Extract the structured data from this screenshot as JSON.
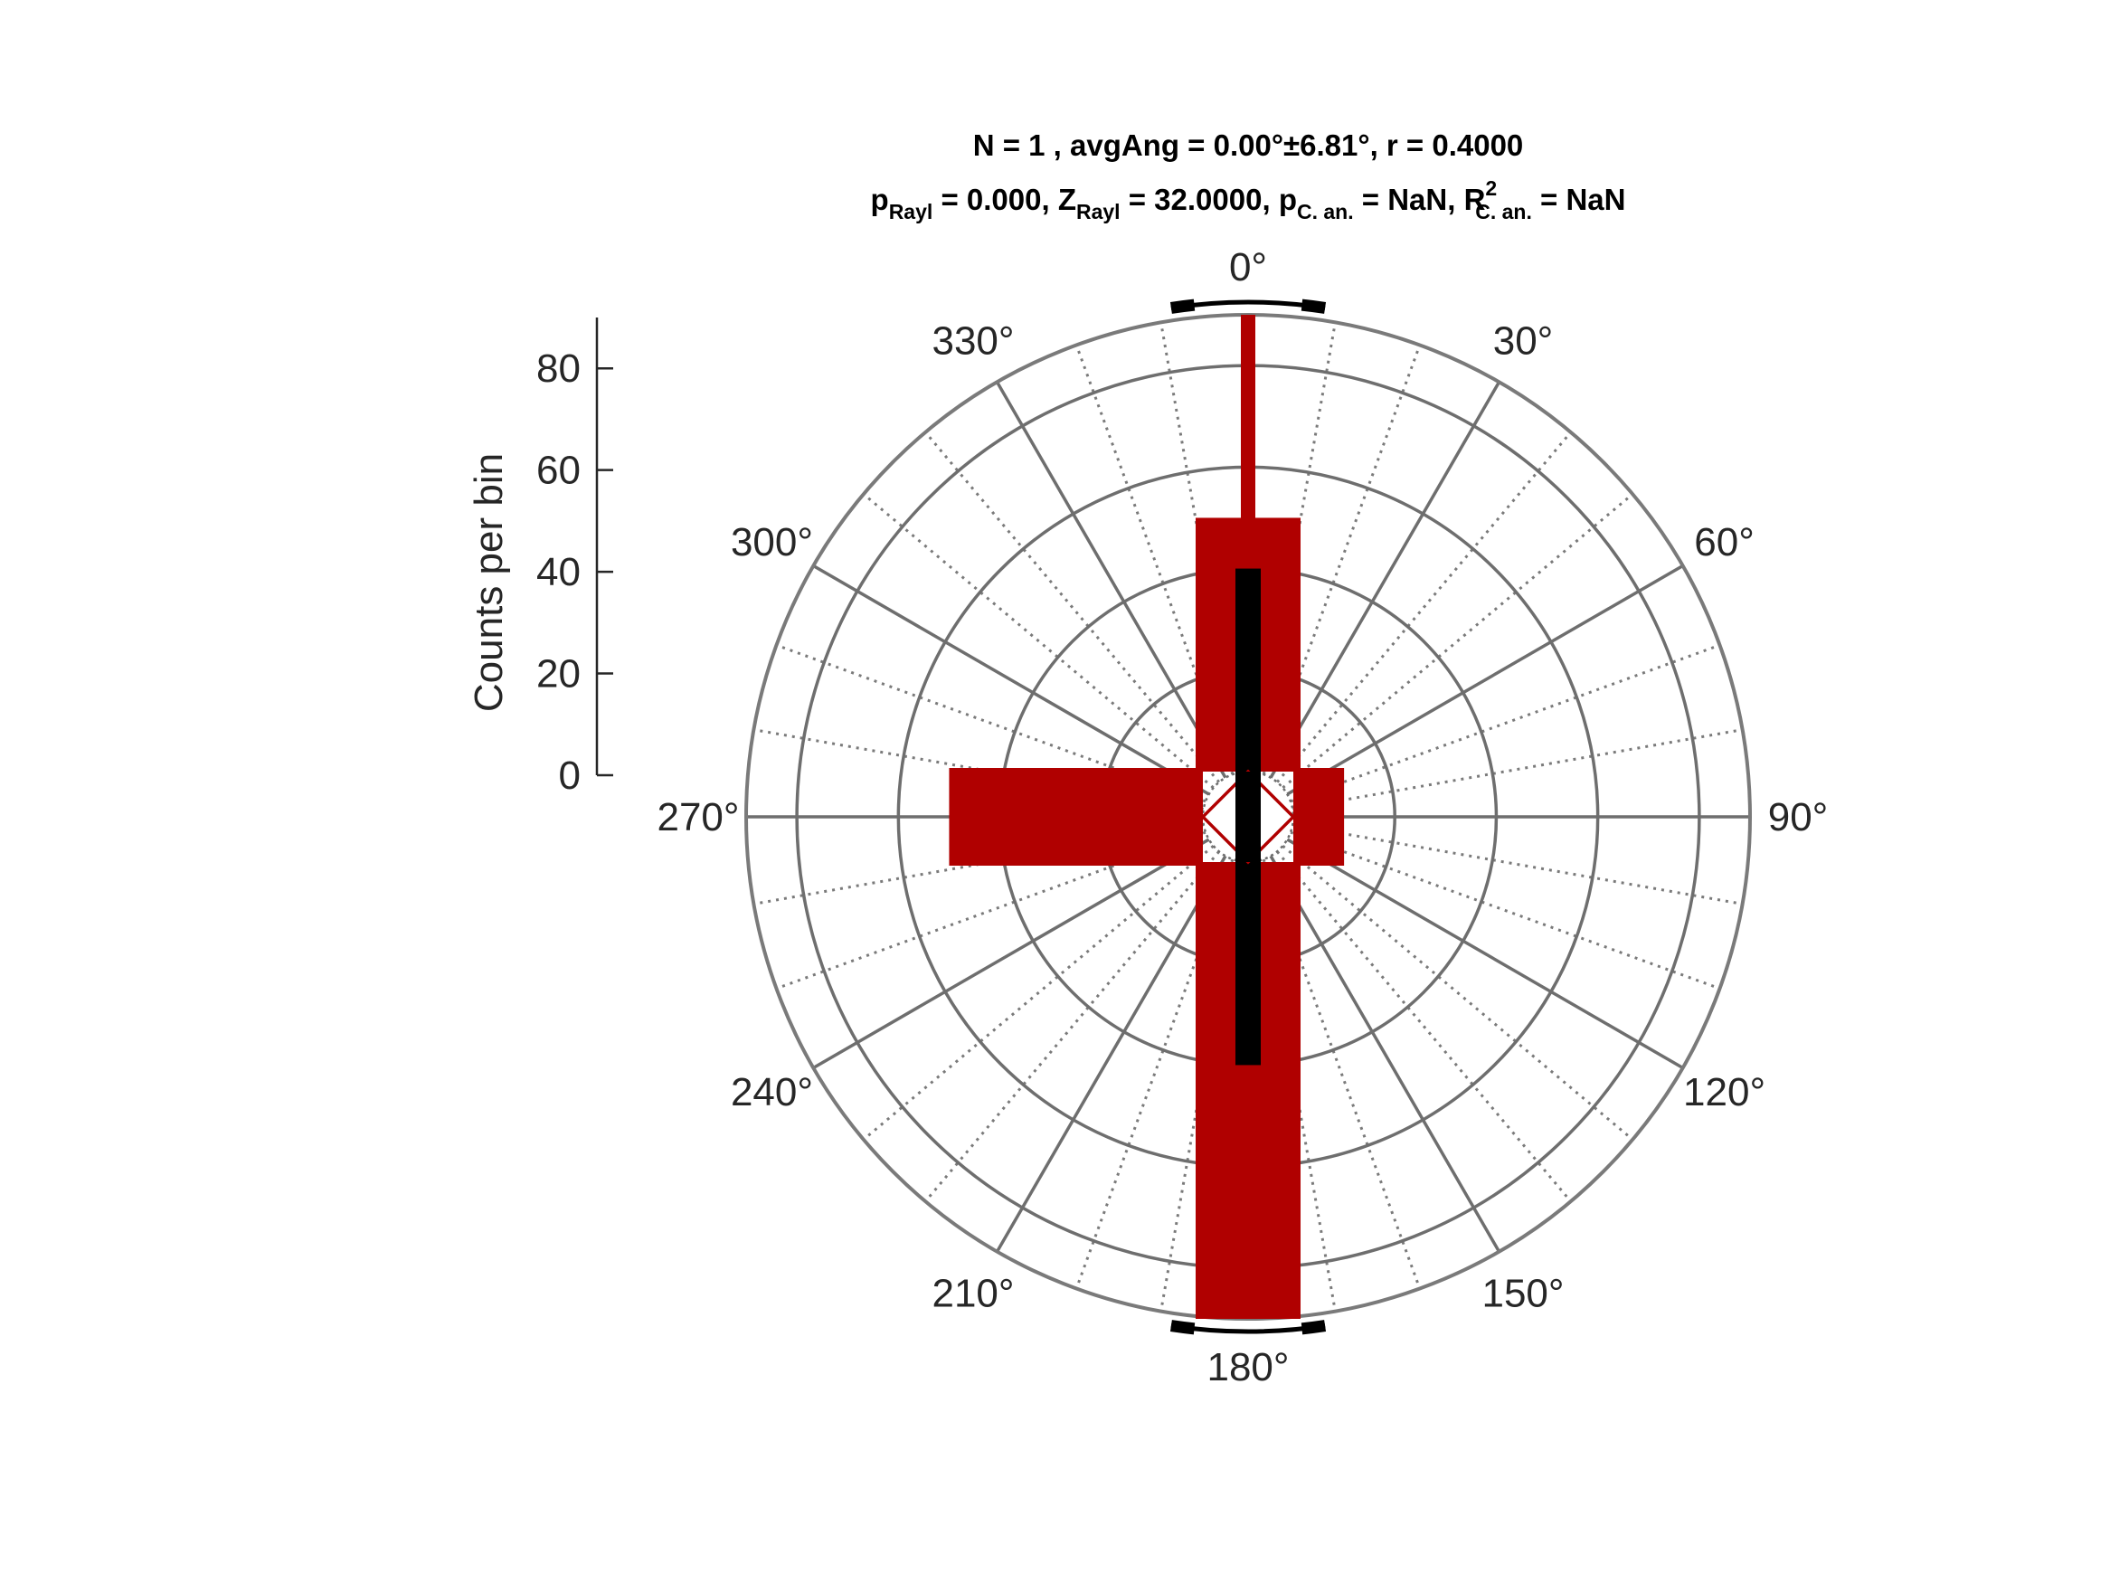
{
  "chart_data": {
    "type": "polar-histogram",
    "title": {
      "line1": "N = 1 , avgAng = 0.00°±6.81°, r = 0.4000",
      "line2": {
        "p_label": "p",
        "p_sub": "Rayl",
        "p_value": " = 0.000, ",
        "z_label": "Z",
        "z_sub": "Rayl",
        "z_value": " = 32.0000, ",
        "pc_label": "p",
        "pc_sub": "C. an.",
        "pc_value": " = NaN, ",
        "r2_label": "R",
        "r2_sup": "2",
        "r2_sub": "C. an.",
        "r2_value": " = NaN"
      }
    },
    "ylabel": "Counts per bin",
    "radial_ticks": [
      "0",
      "20",
      "40",
      "60",
      "80"
    ],
    "radial_range": [
      0,
      90
    ],
    "theta_ticks": [
      "0°",
      "30°",
      "60°",
      "90°",
      "120°",
      "150°",
      "180°",
      "210°",
      "240°",
      "270°",
      "300°",
      "330°"
    ],
    "theta_zero": "top",
    "theta_direction": "clockwise",
    "bins": [
      {
        "direction": "0°",
        "value": 50
      },
      {
        "direction": "90°",
        "value": 10
      },
      {
        "direction": "180°",
        "value": 90
      },
      {
        "direction": "270°",
        "value": 50
      }
    ],
    "spike": {
      "direction": "0°",
      "value": 90
    },
    "mean_axis": {
      "orientation": "0°–180°",
      "half_length": 40
    },
    "confidence_arcs": [
      "0°",
      "180°"
    ],
    "grid": true,
    "colors": {
      "bars": "#b00000",
      "axis_line": "#000000",
      "grid": "#7a7a7a"
    }
  }
}
